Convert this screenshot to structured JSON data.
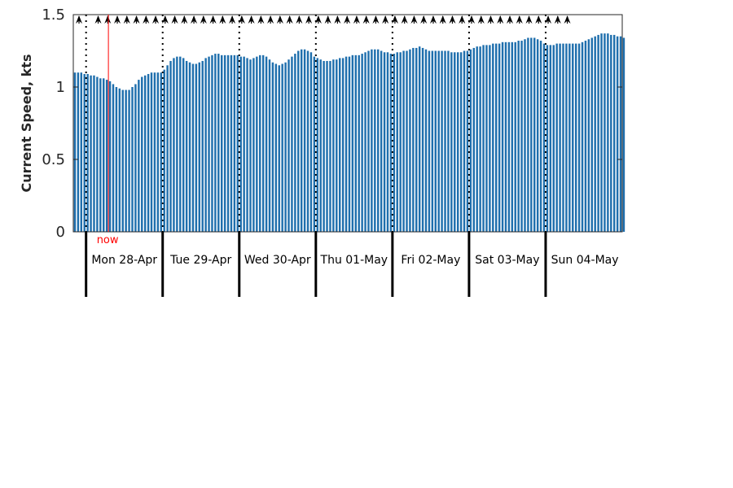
{
  "chart_data": {
    "type": "bar",
    "title": "",
    "ylabel": "Current Speed, kts",
    "xlabel": "",
    "ylim": [
      0,
      1.5
    ],
    "yticks": [
      0,
      0.5,
      1,
      1.5
    ],
    "ytick_labels": [
      "0",
      "0.5",
      "1",
      "1.5"
    ],
    "grid": false,
    "x_start": "2025-04-27T20:00",
    "x_end": "2025-05-05T00:00",
    "time_step_hours": 1,
    "bar_color": "#1f6fad",
    "now_color": "#ff0000",
    "now_label": "now",
    "now_time": "2025-04-28T07:00",
    "day_boundaries": [
      "2025-04-28T00:00",
      "2025-04-29T00:00",
      "2025-04-30T00:00",
      "2025-05-01T00:00",
      "2025-05-02T00:00",
      "2025-05-03T00:00",
      "2025-05-04T00:00"
    ],
    "day_labels": [
      "Mon 28-Apr",
      "Tue 29-Apr",
      "Wed 30-Apr",
      "Thu 01-May",
      "Fri 02-May",
      "Sat 03-May",
      "Sun 04-May"
    ],
    "direction_arrows": {
      "direction": "north",
      "times": [
        "2025-04-27T20:00",
        "2025-04-28T02:00",
        "2025-04-28T05:00",
        "2025-04-28T08:00",
        "2025-04-28T11:00",
        "2025-04-28T14:00",
        "2025-04-28T17:00",
        "2025-04-28T20:00",
        "2025-04-28T23:00",
        "2025-04-29T02:00",
        "2025-04-29T05:00",
        "2025-04-29T08:00",
        "2025-04-29T11:00",
        "2025-04-29T14:00",
        "2025-04-29T17:00",
        "2025-04-29T20:00",
        "2025-04-29T23:00",
        "2025-04-30T02:00",
        "2025-04-30T05:00",
        "2025-04-30T08:00",
        "2025-04-30T11:00",
        "2025-04-30T14:00",
        "2025-04-30T17:00",
        "2025-04-30T20:00",
        "2025-04-30T23:00",
        "2025-05-01T02:00",
        "2025-05-01T05:00",
        "2025-05-01T08:00",
        "2025-05-01T11:00",
        "2025-05-01T14:00",
        "2025-05-01T17:00",
        "2025-05-01T20:00",
        "2025-05-01T23:00",
        "2025-05-02T02:00",
        "2025-05-02T05:00",
        "2025-05-02T08:00",
        "2025-05-02T11:00",
        "2025-05-02T14:00",
        "2025-05-02T17:00",
        "2025-05-02T20:00",
        "2025-05-02T23:00",
        "2025-05-03T02:00",
        "2025-05-03T05:00",
        "2025-05-03T08:00",
        "2025-05-03T11:00",
        "2025-05-03T14:00",
        "2025-05-03T17:00",
        "2025-05-03T20:00",
        "2025-05-03T23:00",
        "2025-05-04T02:00",
        "2025-05-04T05:00"
      ]
    },
    "series": [
      {
        "values": [
          1.1,
          1.1,
          1.1,
          1.09,
          1.09,
          1.08,
          1.08,
          1.07,
          1.06,
          1.06,
          1.05,
          1.04,
          1.02,
          1.0,
          0.99,
          0.98,
          0.98,
          0.98,
          1.0,
          1.02,
          1.05,
          1.07,
          1.08,
          1.09,
          1.1,
          1.1,
          1.1,
          1.1,
          1.12,
          1.15,
          1.18,
          1.2,
          1.21,
          1.21,
          1.2,
          1.18,
          1.17,
          1.16,
          1.16,
          1.17,
          1.18,
          1.2,
          1.21,
          1.22,
          1.23,
          1.23,
          1.22,
          1.22,
          1.22,
          1.22,
          1.22,
          1.22,
          1.21,
          1.21,
          1.2,
          1.19,
          1.2,
          1.21,
          1.22,
          1.22,
          1.21,
          1.19,
          1.17,
          1.16,
          1.15,
          1.16,
          1.17,
          1.19,
          1.21,
          1.23,
          1.25,
          1.26,
          1.26,
          1.25,
          1.24,
          1.21,
          1.2,
          1.19,
          1.18,
          1.18,
          1.18,
          1.19,
          1.19,
          1.2,
          1.2,
          1.21,
          1.21,
          1.22,
          1.22,
          1.22,
          1.23,
          1.24,
          1.25,
          1.26,
          1.26,
          1.26,
          1.25,
          1.24,
          1.24,
          1.23,
          1.23,
          1.24,
          1.24,
          1.25,
          1.25,
          1.26,
          1.27,
          1.27,
          1.28,
          1.27,
          1.26,
          1.25,
          1.25,
          1.25,
          1.25,
          1.25,
          1.25,
          1.25,
          1.24,
          1.24,
          1.24,
          1.24,
          1.25,
          1.25,
          1.26,
          1.27,
          1.28,
          1.28,
          1.29,
          1.29,
          1.29,
          1.3,
          1.3,
          1.3,
          1.31,
          1.31,
          1.31,
          1.31,
          1.31,
          1.32,
          1.32,
          1.33,
          1.34,
          1.34,
          1.34,
          1.33,
          1.32,
          1.3,
          1.29,
          1.29,
          1.29,
          1.3,
          1.3,
          1.3,
          1.3,
          1.3,
          1.3,
          1.3,
          1.3,
          1.31,
          1.32,
          1.33,
          1.34,
          1.35,
          1.36,
          1.37,
          1.37,
          1.37,
          1.36,
          1.36,
          1.35,
          1.35,
          1.34
        ]
      }
    ]
  }
}
